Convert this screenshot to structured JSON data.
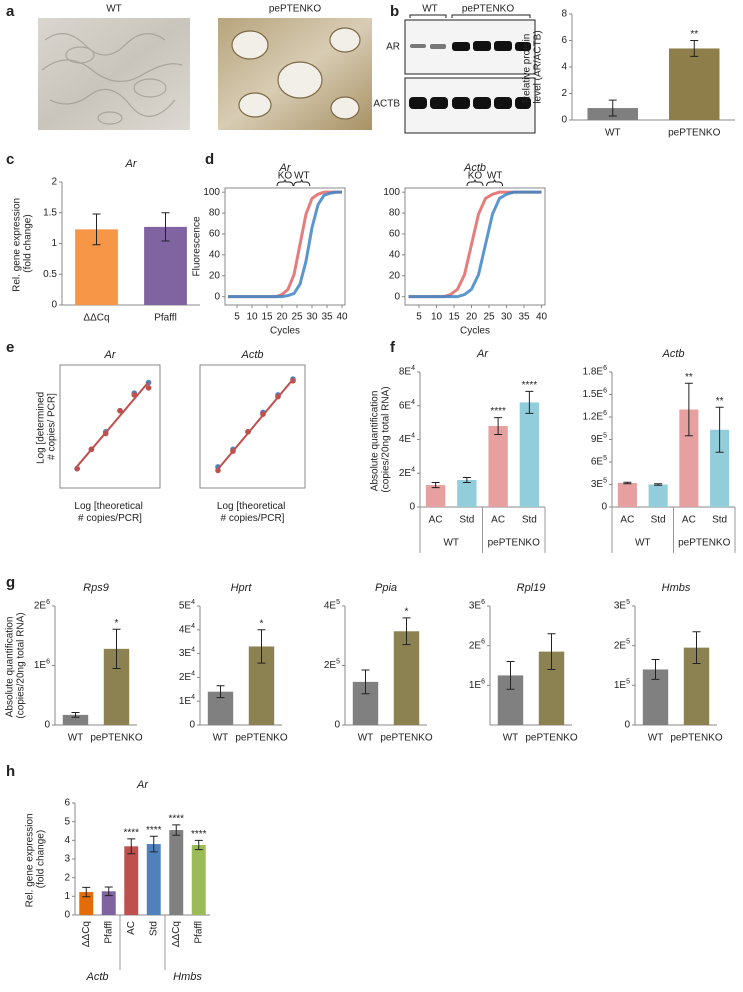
{
  "panel_labels": [
    "a",
    "b",
    "c",
    "d",
    "e",
    "f",
    "g",
    "h"
  ],
  "images": {
    "labels": [
      "WT",
      "pePTENKO"
    ]
  },
  "blot": {
    "lanes": [
      "WT",
      "pePTENKO"
    ],
    "rows": [
      "AR",
      "ACTB"
    ]
  },
  "chart_data": [
    {
      "type": "bar",
      "y_label": "Relative protein level (AR/ACTB)",
      "categories": [
        "WT",
        "pePTENKO"
      ],
      "values": [
        0.9,
        5.4
      ],
      "errors": [
        0.6,
        0.6
      ],
      "colors": [
        "#7f7f7f",
        "#8e7f4a"
      ],
      "significance": [
        null,
        "**"
      ],
      "ylim": [
        0,
        8
      ],
      "yticks": [
        0,
        2,
        4,
        6,
        8
      ]
    },
    {
      "type": "bar",
      "title": "Ar",
      "y_label": "Rel. gene expression (fold change)",
      "categories": [
        "ΔΔCq",
        "Pfaffl"
      ],
      "values": [
        1.23,
        1.27
      ],
      "errors": [
        0.25,
        0.23
      ],
      "colors": [
        "#f79646",
        "#8064a2"
      ],
      "ylim": [
        0,
        2
      ],
      "yticks": [
        0,
        0.5,
        1,
        1.5,
        2
      ]
    },
    {
      "type": "line",
      "title": "Ar",
      "x_label": "Cycles",
      "y_label": "Fluorescence",
      "x": [
        2,
        4,
        6,
        8,
        10,
        12,
        14,
        16,
        18,
        20,
        22,
        24,
        26,
        28,
        30,
        32,
        34,
        36,
        38,
        40
      ],
      "xlim": [
        1,
        41
      ],
      "xticks": [
        5,
        10,
        15,
        20,
        25,
        30,
        35,
        40
      ],
      "ylim": [
        -8,
        104
      ],
      "yticks": [
        0,
        20,
        40,
        60,
        80,
        100
      ],
      "series": [
        {
          "name": "KO",
          "color": "#e06666",
          "values": [
            0,
            0,
            0,
            0,
            0,
            0,
            0,
            0,
            0,
            2,
            7,
            21,
            50,
            79,
            94,
            98,
            100,
            100,
            100,
            100
          ]
        },
        {
          "name": "WT",
          "color": "#3d85c6",
          "values": [
            0,
            0,
            0,
            0,
            0,
            0,
            0,
            0,
            0,
            0,
            1,
            3,
            12,
            34,
            66,
            88,
            97,
            99,
            100,
            100
          ]
        }
      ]
    },
    {
      "type": "line",
      "title": "Actb",
      "x_label": "Cycles",
      "x": [
        2,
        4,
        6,
        8,
        10,
        12,
        14,
        16,
        18,
        20,
        22,
        24,
        26,
        28,
        30,
        32,
        34,
        36,
        38,
        40
      ],
      "xlim": [
        1,
        41
      ],
      "xticks": [
        5,
        10,
        15,
        20,
        25,
        30,
        35,
        40
      ],
      "ylim": [
        -8,
        104
      ],
      "yticks": [
        0,
        20,
        40,
        60,
        80,
        100
      ],
      "series": [
        {
          "name": "KO",
          "color": "#e06666",
          "values": [
            0,
            0,
            0,
            0,
            0,
            0,
            2,
            7,
            21,
            50,
            79,
            94,
            98,
            100,
            100,
            100,
            100,
            100,
            100,
            100
          ]
        },
        {
          "name": "WT",
          "color": "#3d85c6",
          "values": [
            0,
            0,
            0,
            0,
            0,
            0,
            0,
            0,
            2,
            7,
            21,
            50,
            79,
            94,
            98,
            100,
            100,
            100,
            100,
            100
          ]
        }
      ]
    },
    {
      "type": "scatter",
      "title": "Ar",
      "x_label": "Log [theoretical # copies/PCR]",
      "y_label": "Log [determined # copies/ PCR]",
      "x": [
        2.7,
        3.7,
        4.7,
        5.7,
        6.7,
        7.7
      ],
      "xlim": [
        1.5,
        8.5
      ],
      "ylim": [
        1.5,
        8.5
      ],
      "trendline": true,
      "trendline_color": "#c0504d",
      "series": [
        {
          "color": "#4f81bd",
          "values": [
            2.6,
            3.7,
            4.7,
            5.9,
            6.9,
            7.5
          ]
        },
        {
          "color": "#c0504d",
          "values": [
            2.6,
            3.7,
            4.6,
            5.9,
            6.8,
            7.2
          ]
        }
      ]
    },
    {
      "type": "scatter",
      "title": "Actb",
      "x_label": "Log [theoretical # copies/PCR]",
      "x": [
        2.7,
        3.7,
        4.7,
        5.7,
        6.7,
        7.7
      ],
      "xlim": [
        1.5,
        8.5
      ],
      "ylim": [
        1.5,
        8.5
      ],
      "trendline": true,
      "trendline_color": "#c0504d",
      "series": [
        {
          "color": "#4f81bd",
          "values": [
            2.7,
            3.7,
            4.7,
            5.8,
            6.8,
            7.7
          ]
        },
        {
          "color": "#c0504d",
          "values": [
            2.5,
            3.6,
            4.7,
            5.7,
            6.7,
            7.6
          ]
        }
      ]
    },
    {
      "type": "bar",
      "title": "Ar",
      "y_label": "Absolute quantification (copies/20ng total RNA)",
      "groups": [
        {
          "name": "WT",
          "categories": [
            "AC",
            "Std"
          ]
        },
        {
          "name": "pePTENKO",
          "categories": [
            "AC",
            "Std"
          ]
        }
      ],
      "values": [
        13000,
        16000,
        48000,
        62000
      ],
      "errors": [
        1500,
        1500,
        5000,
        6500
      ],
      "colors": [
        "#e6a0a0",
        "#92cddc",
        "#e6a0a0",
        "#92cddc"
      ],
      "significance": [
        null,
        null,
        "****",
        "****"
      ],
      "ylim": [
        0,
        80000
      ],
      "yticks": [
        0,
        {
          "value": 20000,
          "label": "2E4"
        },
        {
          "value": 40000,
          "label": "4E4"
        },
        {
          "value": 60000,
          "label": "6E4"
        },
        {
          "value": 80000,
          "label": "8E4"
        }
      ]
    },
    {
      "type": "bar",
      "title": "Actb",
      "groups": [
        {
          "name": "WT",
          "categories": [
            "AC",
            "Std"
          ]
        },
        {
          "name": "pePTENKO",
          "categories": [
            "AC",
            "Std"
          ]
        }
      ],
      "values": [
        320000,
        300000,
        1300000,
        1030000
      ],
      "errors": [
        10000,
        10000,
        350000,
        300000
      ],
      "colors": [
        "#e6a0a0",
        "#92cddc",
        "#e6a0a0",
        "#92cddc"
      ],
      "significance": [
        null,
        null,
        "**",
        "**"
      ],
      "ylim": [
        0,
        1800000
      ],
      "yticks": [
        0,
        {
          "value": 300000,
          "label": "3E5"
        },
        {
          "value": 600000,
          "label": "6E5"
        },
        {
          "value": 900000,
          "label": "9E5"
        },
        {
          "value": 1200000,
          "label": "1.2E6"
        },
        {
          "value": 1500000,
          "label": "1.5E6"
        },
        {
          "value": 1800000,
          "label": "1.8E6"
        }
      ]
    },
    {
      "type": "bar",
      "title": "Rps9",
      "y_label": "Absolute quantification (copies/20ng total RNA)",
      "categories": [
        "WT",
        "pePTENKO"
      ],
      "values": [
        170000,
        1280000
      ],
      "errors": [
        40000,
        330000
      ],
      "colors": [
        "#808080",
        "#8c8150"
      ],
      "significance": [
        null,
        "*"
      ],
      "ylim": [
        0,
        2000000
      ],
      "yticks": [
        0,
        {
          "value": 1000000,
          "label": "1E6"
        },
        {
          "value": 2000000,
          "label": "2E6"
        }
      ]
    },
    {
      "type": "bar",
      "title": "Hprt",
      "categories": [
        "WT",
        "pePTENKO"
      ],
      "values": [
        14000,
        33000
      ],
      "errors": [
        2500,
        7000
      ],
      "colors": [
        "#808080",
        "#8c8150"
      ],
      "significance": [
        null,
        "*"
      ],
      "ylim": [
        0,
        50000
      ],
      "yticks": [
        0,
        {
          "value": 10000,
          "label": "1E4"
        },
        {
          "value": 20000,
          "label": "2E4"
        },
        {
          "value": 30000,
          "label": "3E4"
        },
        {
          "value": 40000,
          "label": "4E4"
        },
        {
          "value": 50000,
          "label": "5E4"
        }
      ]
    },
    {
      "type": "bar",
      "title": "Ppia",
      "categories": [
        "WT",
        "pePTENKO"
      ],
      "values": [
        145000,
        315000
      ],
      "errors": [
        40000,
        45000
      ],
      "colors": [
        "#808080",
        "#8c8150"
      ],
      "significance": [
        null,
        "*"
      ],
      "ylim": [
        0,
        400000
      ],
      "yticks": [
        0,
        {
          "value": 200000,
          "label": "2E5"
        },
        {
          "value": 400000,
          "label": "4E5"
        }
      ]
    },
    {
      "type": "bar",
      "title": "Rpl19",
      "categories": [
        "WT",
        "pePTENKO"
      ],
      "values": [
        1250000,
        1850000
      ],
      "errors": [
        350000,
        450000
      ],
      "colors": [
        "#808080",
        "#8c8150"
      ],
      "ylim": [
        0,
        3000000
      ],
      "yticks": [
        {
          "value": 1000000,
          "label": "1E6"
        },
        {
          "value": 2000000,
          "label": "2E6"
        },
        {
          "value": 3000000,
          "label": "3E6"
        }
      ]
    },
    {
      "type": "bar",
      "title": "Hmbs",
      "categories": [
        "WT",
        "pePTENKO"
      ],
      "values": [
        140000,
        195000
      ],
      "errors": [
        25000,
        40000
      ],
      "colors": [
        "#808080",
        "#8c8150"
      ],
      "ylim": [
        0,
        300000
      ],
      "yticks": [
        0,
        {
          "value": 100000,
          "label": "1E5"
        },
        {
          "value": 200000,
          "label": "2E5"
        },
        {
          "value": 300000,
          "label": "3E5"
        }
      ]
    },
    {
      "type": "bar",
      "title": "Ar",
      "y_label": "Rel. gene expression (fold change)",
      "rotated_labels": true,
      "groups": [
        {
          "name": "Actb",
          "categories": [
            "ΔΔCq",
            "Pfaffl"
          ]
        },
        {
          "categories": [
            "AC",
            "Std"
          ]
        },
        {
          "name": "Hmbs",
          "categories": [
            "ΔΔCq",
            "Pfaffl"
          ]
        }
      ],
      "values": [
        1.23,
        1.27,
        3.68,
        3.8,
        4.55,
        3.75
      ],
      "errors": [
        0.25,
        0.23,
        0.4,
        0.42,
        0.28,
        0.25
      ],
      "colors": [
        "#e36c09",
        "#8064a2",
        "#c0504d",
        "#4f81bd",
        "#808080",
        "#9bbb59"
      ],
      "significance": [
        null,
        null,
        "****",
        "****",
        "****",
        "****"
      ],
      "ylim": [
        0,
        6
      ],
      "yticks": [
        0,
        1,
        2,
        3,
        4,
        5,
        6
      ]
    }
  ]
}
